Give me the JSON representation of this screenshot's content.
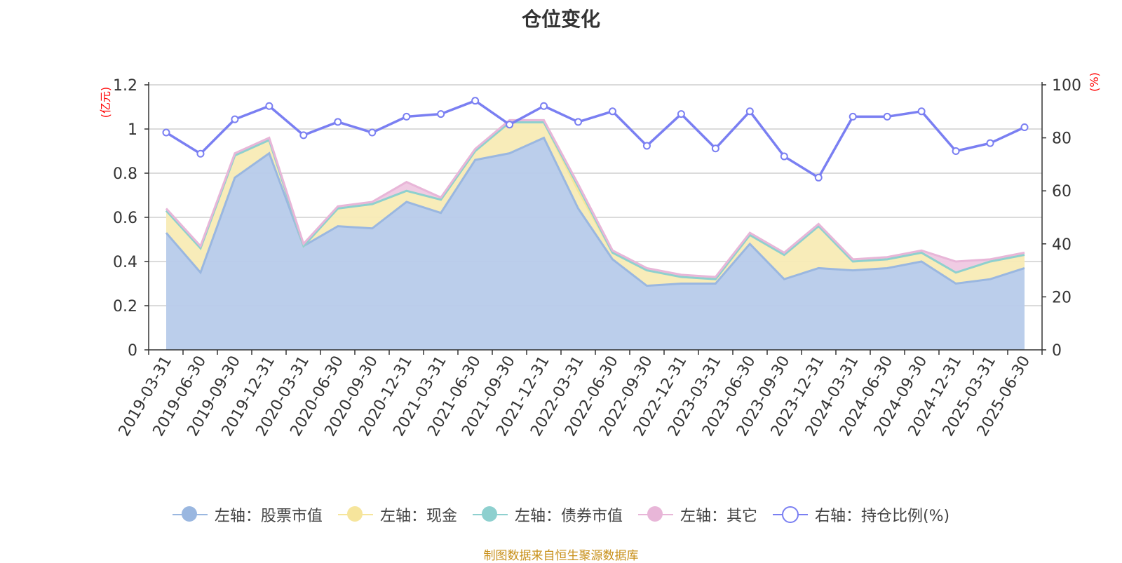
{
  "title": "仓位变化",
  "source": "制图数据来自恒生聚源数据库",
  "chart_data": {
    "type": "area",
    "categories": [
      "2019-03-31",
      "2019-06-30",
      "2019-09-30",
      "2019-12-31",
      "2020-03-31",
      "2020-06-30",
      "2020-09-30",
      "2020-12-31",
      "2021-03-31",
      "2021-06-30",
      "2021-09-30",
      "2021-12-31",
      "2022-03-31",
      "2022-06-30",
      "2022-09-30",
      "2022-12-31",
      "2023-03-31",
      "2023-06-30",
      "2023-09-30",
      "2023-12-31",
      "2024-03-31",
      "2024-06-30",
      "2024-09-30",
      "2024-12-31",
      "2025-03-31",
      "2025-06-30"
    ],
    "left_axis": {
      "label": "(亿元)",
      "ylim": [
        0,
        1.2
      ],
      "ticks": [
        "0",
        "0.2",
        "0.4",
        "0.6",
        "0.8",
        "1",
        "1.2"
      ]
    },
    "right_axis": {
      "label": "(%)",
      "ylim": [
        0,
        100
      ],
      "ticks": [
        "0",
        "20",
        "40",
        "60",
        "80",
        "100"
      ]
    },
    "grid": true,
    "legend_position": "bottom",
    "series": [
      {
        "name": "左轴：股票市值",
        "axis": "left",
        "kind": "stacked-area",
        "color": "#9ab7e0",
        "fill": "#b7cbea",
        "values": [
          0.53,
          0.35,
          0.78,
          0.89,
          0.47,
          0.56,
          0.55,
          0.67,
          0.62,
          0.86,
          0.89,
          0.96,
          0.64,
          0.41,
          0.29,
          0.3,
          0.3,
          0.48,
          0.32,
          0.37,
          0.36,
          0.37,
          0.4,
          0.3,
          0.32,
          0.37
        ]
      },
      {
        "name": "左轴：现金",
        "axis": "left",
        "kind": "stacked-area",
        "color": "#f6e59c",
        "fill": "#f8ebb5",
        "values": [
          0.1,
          0.11,
          0.1,
          0.06,
          0.0,
          0.08,
          0.11,
          0.05,
          0.06,
          0.04,
          0.14,
          0.07,
          0.08,
          0.03,
          0.07,
          0.03,
          0.02,
          0.04,
          0.11,
          0.19,
          0.04,
          0.04,
          0.04,
          0.05,
          0.08,
          0.06
        ]
      },
      {
        "name": "左轴：债券市值",
        "axis": "left",
        "kind": "stacked-area",
        "color": "#8ed0cf",
        "fill": "#a8dcd9",
        "values": [
          0,
          0,
          0,
          0,
          0,
          0,
          0,
          0,
          0,
          0,
          0,
          0,
          0.02,
          0,
          0,
          0,
          0,
          0,
          0,
          0,
          0,
          0,
          0,
          0,
          0,
          0
        ]
      },
      {
        "name": "左轴：其它",
        "axis": "left",
        "kind": "stacked-area",
        "color": "#e8b6d8",
        "fill": "#efc8e2",
        "values": [
          0.01,
          0.01,
          0.01,
          0.01,
          0.01,
          0.01,
          0.01,
          0.04,
          0.01,
          0.01,
          0.01,
          0.01,
          0.01,
          0.01,
          0.01,
          0.01,
          0.01,
          0.01,
          0.01,
          0.01,
          0.01,
          0.01,
          0.01,
          0.05,
          0.01,
          0.01
        ]
      },
      {
        "name": "右轴：持仓比例(%)",
        "axis": "right",
        "kind": "line",
        "color": "#7a7ff2",
        "values": [
          82,
          74,
          87,
          92,
          81,
          86,
          82,
          88,
          89,
          94,
          85,
          92,
          86,
          90,
          77,
          89,
          76,
          90,
          73,
          65,
          88,
          88,
          90,
          75,
          78,
          84
        ]
      }
    ]
  }
}
